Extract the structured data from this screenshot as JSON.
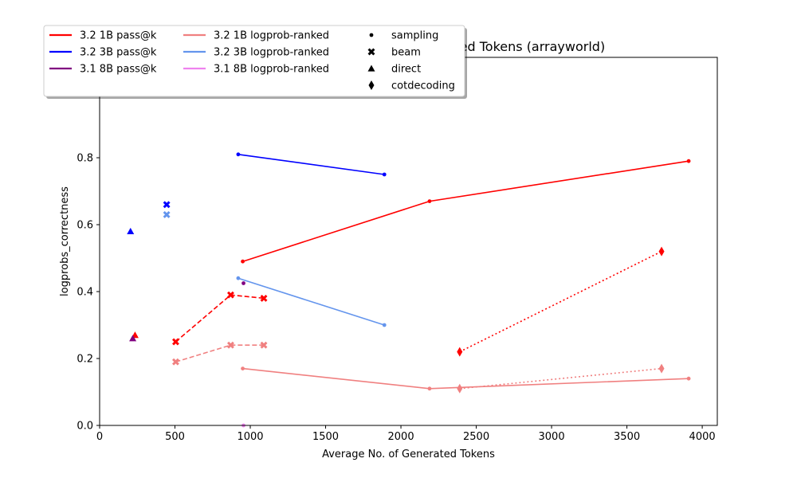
{
  "chart_data": {
    "type": "line",
    "title": "Correctness vs Average No. of Generated Tokens (arrayworld)",
    "xlabel": "Average No. of Generated Tokens",
    "ylabel": "logprobs_correctness",
    "xlim": [
      0,
      4100
    ],
    "ylim": [
      0,
      1.1
    ],
    "xticks": [
      0,
      500,
      1000,
      1500,
      2000,
      2500,
      3000,
      3500,
      4000
    ],
    "xtick_labels": [
      "0",
      "500",
      "1000",
      "1500",
      "2000",
      "2500",
      "3000",
      "3500",
      "4000"
    ],
    "yticks": [
      0,
      0.2,
      0.4,
      0.6,
      0.8,
      1.0
    ],
    "ytick_labels": [
      "0.0",
      "0.2",
      "0.4",
      "0.6",
      "0.8",
      "1.0"
    ],
    "grid": false,
    "legend_placement": "upper-left",
    "legend": {
      "models": [
        {
          "label": "3.2 1B pass@k",
          "color": "#ff0000"
        },
        {
          "label": "3.2 3B pass@k",
          "color": "#0000ff"
        },
        {
          "label": "3.1 8B pass@k",
          "color": "#800080"
        },
        {
          "label": "3.2 1B logprob-ranked",
          "color": "#f08080"
        },
        {
          "label": "3.2 3B logprob-ranked",
          "color": "#6495ed"
        },
        {
          "label": "3.1 8B logprob-ranked",
          "color": "#ee82ee"
        }
      ],
      "methods": [
        {
          "label": "sampling",
          "marker": "dot"
        },
        {
          "label": "beam",
          "marker": "x"
        },
        {
          "label": "direct",
          "marker": "triangle"
        },
        {
          "label": "cotdecoding",
          "marker": "diamond"
        }
      ]
    },
    "series": [
      {
        "model": "3.2 1B pass@k",
        "method": "sampling",
        "color": "#ff0000",
        "marker": "dot",
        "line": "solid",
        "x": [
          950,
          2190,
          3910
        ],
        "y": [
          0.49,
          0.67,
          0.79
        ]
      },
      {
        "model": "3.2 3B pass@k",
        "method": "sampling",
        "color": "#0000ff",
        "marker": "dot",
        "line": "solid",
        "x": [
          920,
          1890
        ],
        "y": [
          0.81,
          0.75
        ]
      },
      {
        "model": "3.1 8B pass@k",
        "method": "sampling",
        "color": "#800080",
        "marker": "dot",
        "line": "solid",
        "x": [
          955
        ],
        "y": [
          0.425
        ]
      },
      {
        "model": "3.2 1B logprob-ranked",
        "method": "sampling",
        "color": "#f08080",
        "marker": "dot",
        "line": "solid",
        "x": [
          950,
          2190,
          3910
        ],
        "y": [
          0.17,
          0.11,
          0.14
        ]
      },
      {
        "model": "3.2 3B logprob-ranked",
        "method": "sampling",
        "color": "#6495ed",
        "marker": "dot",
        "line": "solid",
        "x": [
          920,
          1890
        ],
        "y": [
          0.44,
          0.3
        ]
      },
      {
        "model": "3.1 8B logprob-ranked",
        "method": "sampling",
        "color": "#ee82ee",
        "marker": "dot",
        "line": "solid",
        "x": [
          955
        ],
        "y": [
          0.0
        ]
      },
      {
        "model": "3.2 1B pass@k",
        "method": "beam",
        "color": "#ff0000",
        "marker": "x",
        "line": "dashed",
        "x": [
          505,
          870,
          1090
        ],
        "y": [
          0.25,
          0.39,
          0.38
        ]
      },
      {
        "model": "3.2 3B pass@k",
        "method": "beam",
        "color": "#0000ff",
        "marker": "x",
        "line": "none",
        "x": [
          445
        ],
        "y": [
          0.66
        ]
      },
      {
        "model": "3.2 1B logprob-ranked",
        "method": "beam",
        "color": "#f08080",
        "marker": "x",
        "line": "dashed",
        "x": [
          505,
          870,
          1090
        ],
        "y": [
          0.19,
          0.24,
          0.24
        ]
      },
      {
        "model": "3.2 3B logprob-ranked",
        "method": "beam",
        "color": "#6495ed",
        "marker": "x",
        "line": "none",
        "x": [
          445
        ],
        "y": [
          0.63
        ]
      },
      {
        "model": "3.2 1B pass@k",
        "method": "direct",
        "color": "#ff0000",
        "marker": "triangle",
        "line": "none",
        "x": [
          235
        ],
        "y": [
          0.27
        ]
      },
      {
        "model": "3.2 3B pass@k",
        "method": "direct",
        "color": "#0000ff",
        "marker": "triangle",
        "line": "none",
        "x": [
          205
        ],
        "y": [
          0.58
        ]
      },
      {
        "model": "3.1 8B pass@k",
        "method": "direct",
        "color": "#800080",
        "marker": "triangle",
        "line": "none",
        "x": [
          220
        ],
        "y": [
          0.26
        ]
      },
      {
        "model": "3.2 1B pass@k",
        "method": "cotdecoding",
        "color": "#ff0000",
        "marker": "diamond",
        "line": "dotted",
        "x": [
          2390,
          3730
        ],
        "y": [
          0.22,
          0.52
        ]
      },
      {
        "model": "3.2 1B logprob-ranked",
        "method": "cotdecoding",
        "color": "#f08080",
        "marker": "diamond",
        "line": "dotted",
        "x": [
          2390,
          3730
        ],
        "y": [
          0.11,
          0.17
        ]
      }
    ]
  }
}
